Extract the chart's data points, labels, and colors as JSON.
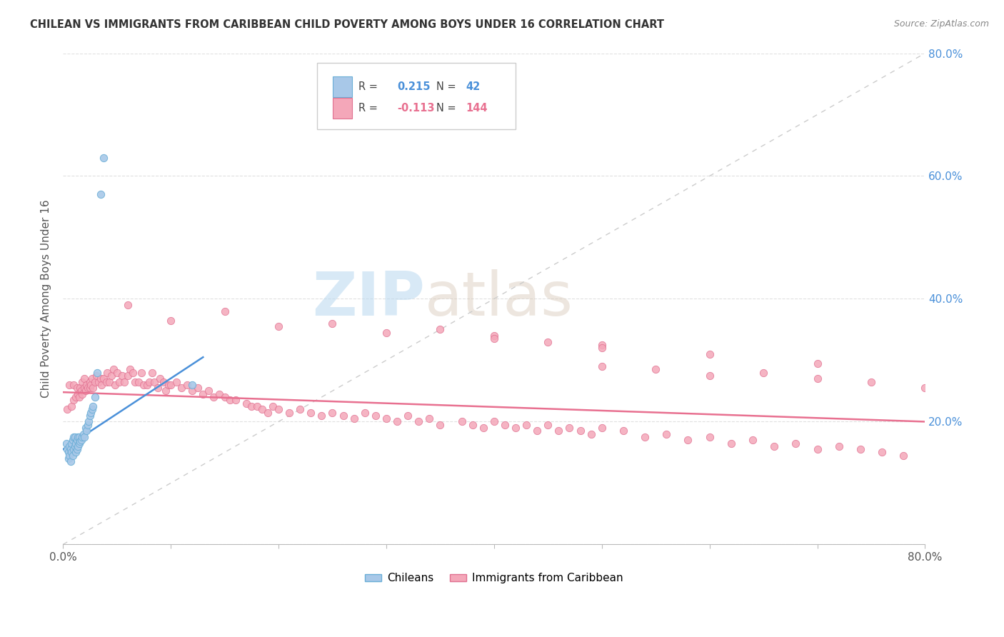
{
  "title": "CHILEAN VS IMMIGRANTS FROM CARIBBEAN CHILD POVERTY AMONG BOYS UNDER 16 CORRELATION CHART",
  "source": "Source: ZipAtlas.com",
  "ylabel": "Child Poverty Among Boys Under 16",
  "xlim": [
    0.0,
    0.8
  ],
  "ylim": [
    0.0,
    0.8
  ],
  "yticks": [
    0.0,
    0.2,
    0.4,
    0.6,
    0.8
  ],
  "ytick_labels": [
    "",
    "20.0%",
    "40.0%",
    "60.0%",
    "80.0%"
  ],
  "chilean_color": "#a8c8e8",
  "chilean_edge_color": "#6aaed6",
  "caribbean_color": "#f4a7b9",
  "caribbean_edge_color": "#e07090",
  "trend_chilean_color": "#4a90d9",
  "trend_caribbean_color": "#e87090",
  "diagonal_color": "#cccccc",
  "watermark_zip": "ZIP",
  "watermark_atlas": "atlas",
  "chilean_x": [
    0.003,
    0.004,
    0.005,
    0.005,
    0.006,
    0.006,
    0.007,
    0.007,
    0.008,
    0.008,
    0.009,
    0.009,
    0.01,
    0.01,
    0.011,
    0.011,
    0.012,
    0.012,
    0.013,
    0.013,
    0.014,
    0.014,
    0.015,
    0.015,
    0.016,
    0.017,
    0.018,
    0.019,
    0.02,
    0.021,
    0.022,
    0.023,
    0.024,
    0.025,
    0.026,
    0.027,
    0.028,
    0.03,
    0.032,
    0.035,
    0.038,
    0.12
  ],
  "chilean_y": [
    0.165,
    0.155,
    0.14,
    0.15,
    0.16,
    0.145,
    0.135,
    0.155,
    0.15,
    0.165,
    0.145,
    0.17,
    0.155,
    0.175,
    0.16,
    0.175,
    0.15,
    0.165,
    0.155,
    0.17,
    0.16,
    0.175,
    0.165,
    0.175,
    0.168,
    0.17,
    0.175,
    0.18,
    0.175,
    0.19,
    0.185,
    0.195,
    0.2,
    0.21,
    0.215,
    0.22,
    0.225,
    0.24,
    0.28,
    0.57,
    0.63,
    0.26
  ],
  "caribbean_x": [
    0.004,
    0.006,
    0.008,
    0.01,
    0.01,
    0.012,
    0.013,
    0.014,
    0.015,
    0.016,
    0.017,
    0.018,
    0.018,
    0.02,
    0.02,
    0.021,
    0.022,
    0.023,
    0.025,
    0.025,
    0.026,
    0.027,
    0.028,
    0.03,
    0.031,
    0.033,
    0.035,
    0.036,
    0.038,
    0.04,
    0.041,
    0.043,
    0.045,
    0.047,
    0.048,
    0.05,
    0.052,
    0.055,
    0.057,
    0.06,
    0.062,
    0.065,
    0.067,
    0.07,
    0.073,
    0.075,
    0.078,
    0.08,
    0.083,
    0.085,
    0.088,
    0.09,
    0.093,
    0.095,
    0.098,
    0.1,
    0.105,
    0.11,
    0.115,
    0.12,
    0.125,
    0.13,
    0.135,
    0.14,
    0.145,
    0.15,
    0.155,
    0.16,
    0.17,
    0.175,
    0.18,
    0.185,
    0.19,
    0.195,
    0.2,
    0.21,
    0.22,
    0.23,
    0.24,
    0.25,
    0.26,
    0.27,
    0.28,
    0.29,
    0.3,
    0.31,
    0.32,
    0.33,
    0.34,
    0.35,
    0.37,
    0.38,
    0.39,
    0.4,
    0.41,
    0.42,
    0.43,
    0.44,
    0.45,
    0.46,
    0.47,
    0.48,
    0.49,
    0.5,
    0.52,
    0.54,
    0.56,
    0.58,
    0.6,
    0.62,
    0.64,
    0.66,
    0.68,
    0.7,
    0.72,
    0.74,
    0.76,
    0.78,
    0.5,
    0.55,
    0.6,
    0.65,
    0.7,
    0.75,
    0.8,
    0.4,
    0.45,
    0.5,
    0.06,
    0.1,
    0.15,
    0.2,
    0.25,
    0.3,
    0.35,
    0.4,
    0.5,
    0.6,
    0.7
  ],
  "caribbean_y": [
    0.22,
    0.26,
    0.225,
    0.235,
    0.26,
    0.24,
    0.255,
    0.245,
    0.24,
    0.255,
    0.25,
    0.245,
    0.265,
    0.255,
    0.27,
    0.25,
    0.26,
    0.255,
    0.255,
    0.265,
    0.26,
    0.27,
    0.255,
    0.265,
    0.275,
    0.265,
    0.27,
    0.26,
    0.27,
    0.265,
    0.28,
    0.265,
    0.275,
    0.285,
    0.26,
    0.28,
    0.265,
    0.275,
    0.265,
    0.275,
    0.285,
    0.28,
    0.265,
    0.265,
    0.28,
    0.26,
    0.26,
    0.265,
    0.28,
    0.265,
    0.255,
    0.27,
    0.265,
    0.25,
    0.26,
    0.26,
    0.265,
    0.255,
    0.26,
    0.25,
    0.255,
    0.245,
    0.25,
    0.24,
    0.245,
    0.24,
    0.235,
    0.235,
    0.23,
    0.225,
    0.225,
    0.22,
    0.215,
    0.225,
    0.22,
    0.215,
    0.22,
    0.215,
    0.21,
    0.215,
    0.21,
    0.205,
    0.215,
    0.21,
    0.205,
    0.2,
    0.21,
    0.2,
    0.205,
    0.195,
    0.2,
    0.195,
    0.19,
    0.2,
    0.195,
    0.19,
    0.195,
    0.185,
    0.195,
    0.185,
    0.19,
    0.185,
    0.18,
    0.19,
    0.185,
    0.175,
    0.18,
    0.17,
    0.175,
    0.165,
    0.17,
    0.16,
    0.165,
    0.155,
    0.16,
    0.155,
    0.15,
    0.145,
    0.29,
    0.285,
    0.275,
    0.28,
    0.27,
    0.265,
    0.255,
    0.34,
    0.33,
    0.325,
    0.39,
    0.365,
    0.38,
    0.355,
    0.36,
    0.345,
    0.35,
    0.335,
    0.32,
    0.31,
    0.295
  ]
}
